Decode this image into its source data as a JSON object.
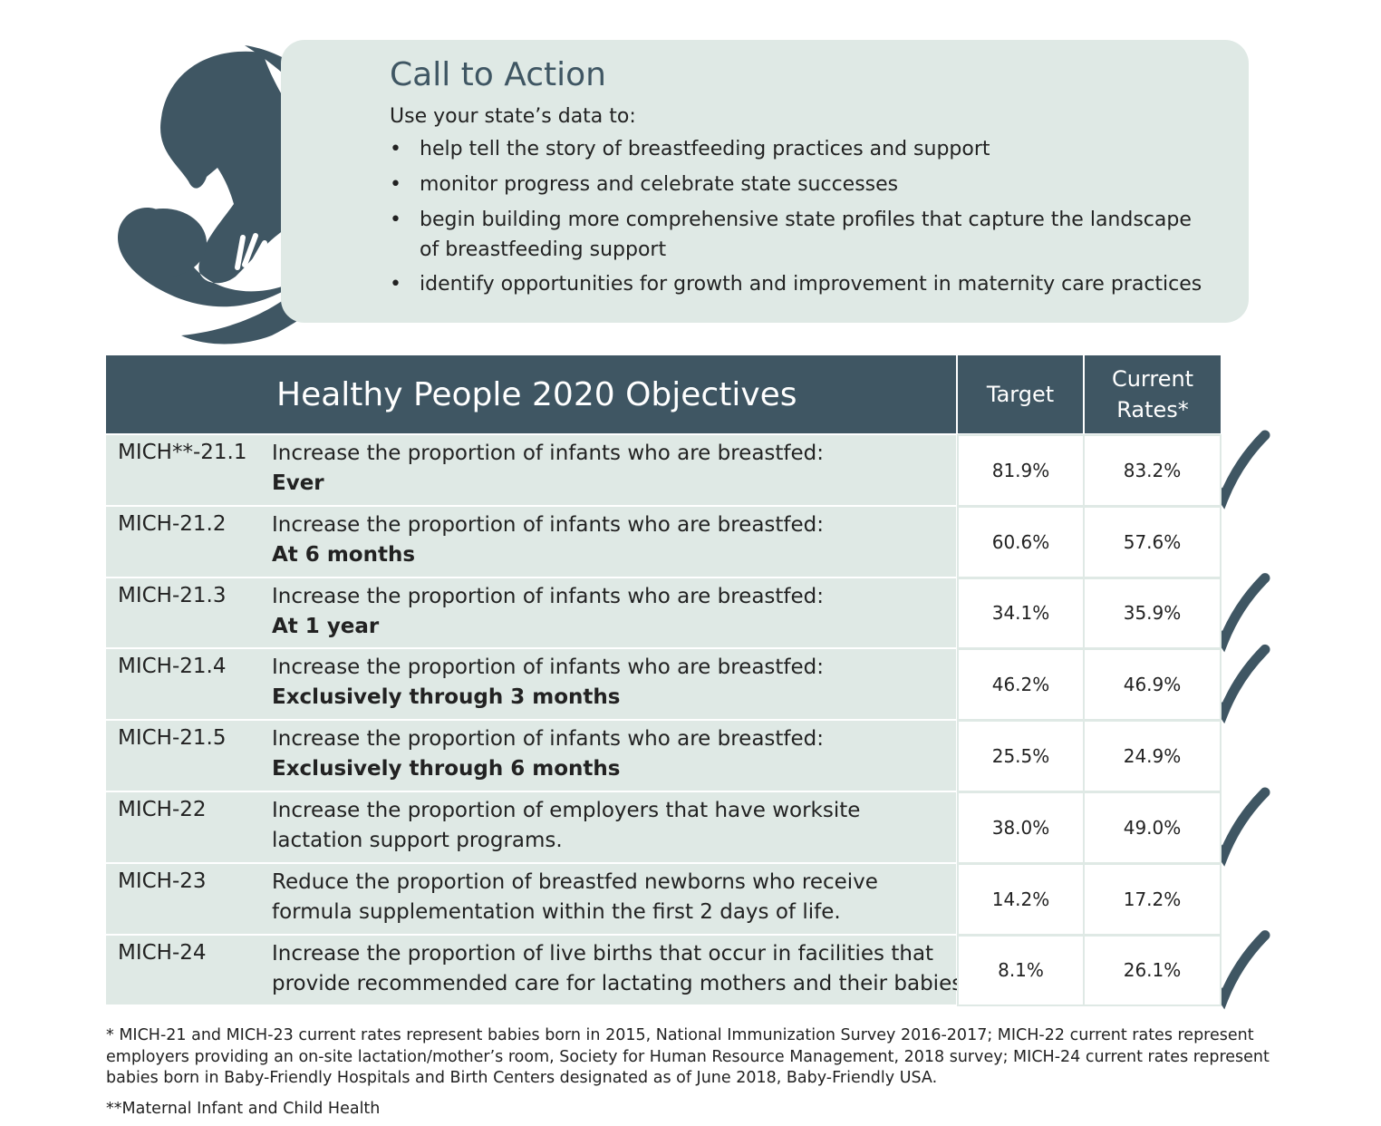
{
  "call_to_action": {
    "title": "Call to Action",
    "intro": "Use your state’s data to:",
    "bullets": [
      [
        "help tell the story of breastfeeding practices and support"
      ],
      [
        "monitor progress and celebrate state successes"
      ],
      [
        "begin building more comprehensive state profiles that capture the landscape",
        "of breastfeeding support"
      ],
      [
        "identify opportunities for growth and improvement in maternity care practices"
      ]
    ]
  },
  "table": {
    "title": "Healthy People 2020 Objectives",
    "columns": [
      "Target",
      "Current Rates*"
    ],
    "rows": [
      {
        "id": "MICH**-21.1",
        "text": [
          "Increase the proportion of infants who are breastfed:"
        ],
        "emphasis": "Ever",
        "target": "81.9%",
        "current": "83.2%",
        "checked": true
      },
      {
        "id": "MICH-21.2",
        "text": [
          "Increase the proportion of infants who are breastfed:"
        ],
        "emphasis": "At 6 months",
        "target": "60.6%",
        "current": "57.6%",
        "checked": false
      },
      {
        "id": "MICH-21.3",
        "text": [
          "Increase the proportion of infants who are breastfed:"
        ],
        "emphasis": "At 1 year",
        "target": "34.1%",
        "current": "35.9%",
        "checked": true
      },
      {
        "id": "MICH-21.4",
        "text": [
          "Increase the proportion of infants who are breastfed:"
        ],
        "emphasis": "Exclusively through 3 months",
        "target": "46.2%",
        "current": "46.9%",
        "checked": true
      },
      {
        "id": "MICH-21.5",
        "text": [
          "Increase the proportion of infants who are breastfed:"
        ],
        "emphasis": "Exclusively through 6 months",
        "target": "25.5%",
        "current": "24.9%",
        "checked": false
      },
      {
        "id": "MICH-22",
        "text": [
          "Increase the proportion of employers that have worksite",
          "lactation support programs."
        ],
        "target": "38.0%",
        "current": "49.0%",
        "checked": true
      },
      {
        "id": "MICH-23",
        "text": [
          "Reduce the proportion of breastfed newborns who receive",
          "formula supplementation within the first 2 days of life."
        ],
        "target": "14.2%",
        "current": "17.2%",
        "checked": false
      },
      {
        "id": "MICH-24",
        "text": [
          "Increase the proportion of live births that occur in facilities that",
          "provide recommended care for lactating mothers and their babies."
        ],
        "target": "8.1%",
        "current": "26.1%",
        "checked": true
      }
    ]
  },
  "footnotes": [
    [
      "* MICH-21 and MICH-23 current rates represent babies born in 2015, National Immunization Survey 2016-2017; MICH-22 current rates represent",
      "employers providing an on-site lactation/mother’s room, Society for Human Resource Management, 2018 survey; MICH-24 current rates represent",
      "babies born in Baby-Friendly Hospitals and Birth Centers designated as of June 2018, Baby-Friendly USA."
    ],
    [
      "**Maternal Infant and Child Health"
    ]
  ]
}
